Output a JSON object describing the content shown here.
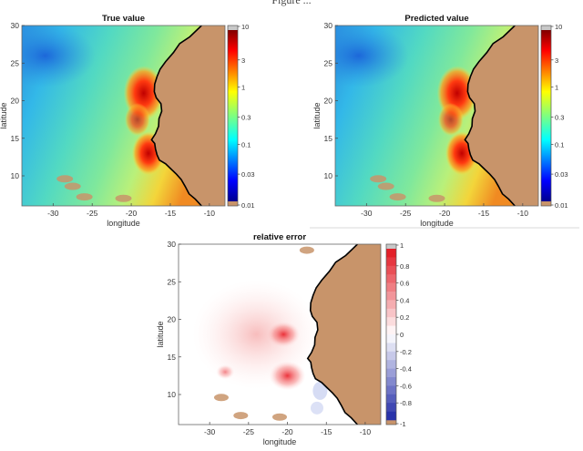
{
  "caption_fragment": "Figure ... ",
  "colors": {
    "land": "#c8946a",
    "coast": "#000000",
    "grey_cap": "#c8c8c8",
    "divider": "#cccccc"
  },
  "chart_data": [
    {
      "type": "heatmap",
      "title": "True value",
      "xlabel": "longitude",
      "ylabel": "latitude",
      "xlim": [
        -34,
        -8
      ],
      "ylim": [
        6,
        30
      ],
      "xticks": [
        "-30",
        "-25",
        "-20",
        "-15",
        "-10"
      ],
      "xtick_values": [
        -30,
        -25,
        -20,
        -15,
        -10
      ],
      "yticks": [
        "30",
        "25",
        "20",
        "15",
        "10"
      ],
      "ytick_values": [
        30,
        25,
        20,
        15,
        10
      ],
      "colorscale": "log jet",
      "colorbar_ticks": [
        "10",
        "3",
        "1",
        "0.3",
        "0.1",
        "0.03",
        "0.01"
      ],
      "colorbar_values": [
        10,
        3,
        1,
        0.3,
        0.1,
        0.03,
        0.01
      ],
      "colorbar_range": [
        0.01,
        10
      ]
    },
    {
      "type": "heatmap",
      "title": "Predicted value",
      "xlabel": "longitude",
      "ylabel": "latitude",
      "xlim": [
        -34,
        -8
      ],
      "ylim": [
        6,
        30
      ],
      "xticks": [
        "-30",
        "-25",
        "-20",
        "-15",
        "-10"
      ],
      "xtick_values": [
        -30,
        -25,
        -20,
        -15,
        -10
      ],
      "yticks": [
        "30",
        "25",
        "20",
        "15",
        "10"
      ],
      "ytick_values": [
        30,
        25,
        20,
        15,
        10
      ],
      "colorscale": "log jet",
      "colorbar_ticks": [
        "10",
        "3",
        "1",
        "0.3",
        "0.1",
        "0.03",
        "0.01"
      ],
      "colorbar_values": [
        10,
        3,
        1,
        0.3,
        0.1,
        0.03,
        0.01
      ],
      "colorbar_range": [
        0.01,
        10
      ]
    },
    {
      "type": "heatmap",
      "title": "relative error",
      "xlabel": "longitude",
      "ylabel": "latitude",
      "xlim": [
        -34,
        -8
      ],
      "ylim": [
        6,
        30
      ],
      "xticks": [
        "-30",
        "-25",
        "-20",
        "-15",
        "-10"
      ],
      "xtick_values": [
        -30,
        -25,
        -20,
        -15,
        -10
      ],
      "yticks": [
        "30",
        "25",
        "20",
        "15",
        "10"
      ],
      "ytick_values": [
        30,
        25,
        20,
        15,
        10
      ],
      "colorscale": "diverging blue-white-red",
      "colorbar_ticks": [
        "1",
        "0.8",
        "0.6",
        "0.4",
        "0.2",
        "0",
        "-0.2",
        "-0.4",
        "-0.6",
        "-0.8",
        "-1"
      ],
      "colorbar_values": [
        1,
        0.8,
        0.6,
        0.4,
        0.2,
        0,
        -0.2,
        -0.4,
        -0.6,
        -0.8,
        -1
      ],
      "colorbar_range": [
        -1,
        1
      ]
    }
  ]
}
